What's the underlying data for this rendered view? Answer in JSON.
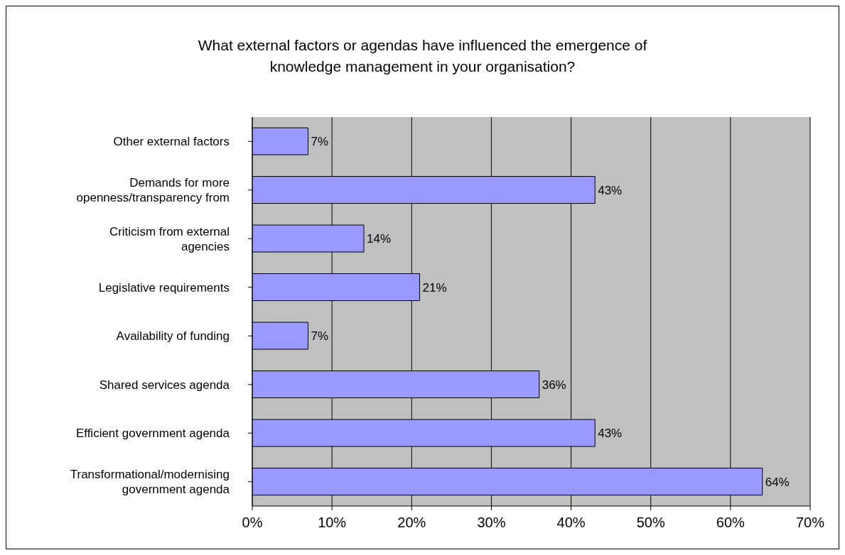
{
  "chart_data": {
    "type": "bar",
    "orientation": "horizontal",
    "title": "What external factors or agendas have influenced the emergence of knowledge management in your organisation?",
    "categories": [
      "Other external factors",
      "Demands for more openness/transparency from",
      "Criticism from external agencies",
      "Legislative requirements",
      "Availability of funding",
      "Shared services agenda",
      "Efficient government agenda",
      "Transformational/modernising government agenda"
    ],
    "values": [
      7,
      43,
      14,
      21,
      7,
      36,
      43,
      64
    ],
    "value_labels": [
      "7%",
      "43%",
      "14%",
      "21%",
      "7%",
      "36%",
      "43%",
      "64%"
    ],
    "color": "#9999ff",
    "xlim": [
      0,
      70
    ],
    "xticks": [
      {
        "value": 0,
        "label": "0%"
      },
      {
        "value": 10,
        "label": "10%"
      },
      {
        "value": 20,
        "label": "20%"
      },
      {
        "value": 30,
        "label": "30%"
      },
      {
        "value": 40,
        "label": "40%"
      },
      {
        "value": 50,
        "label": "50%"
      },
      {
        "value": 60,
        "label": "60%"
      },
      {
        "value": 70,
        "label": "70%"
      }
    ],
    "grid": "x",
    "legend": false
  }
}
